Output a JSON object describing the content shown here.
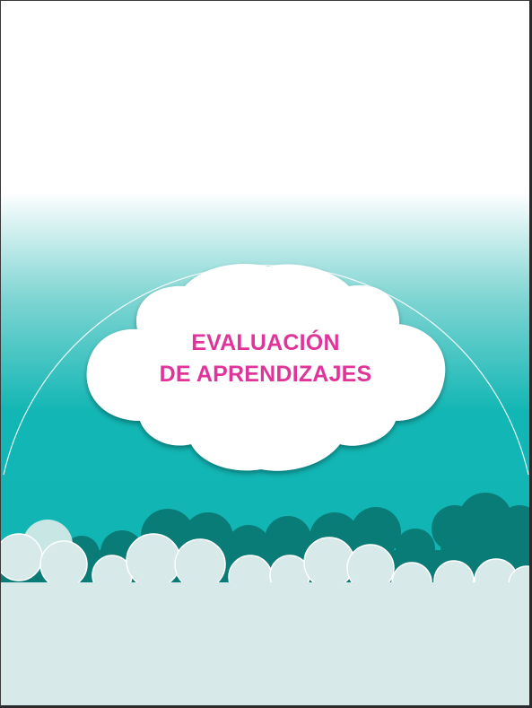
{
  "cover": {
    "title_line_1": "EVALUACIÓN",
    "title_line_2": "DE APRENDIZAJES"
  },
  "colors": {
    "title": "#e0349a",
    "teal_band": "#12b5b3",
    "dark_clouds": "#0a7c78",
    "light_clouds": "#d8e9ea",
    "white_cloud": "#ffffff"
  }
}
